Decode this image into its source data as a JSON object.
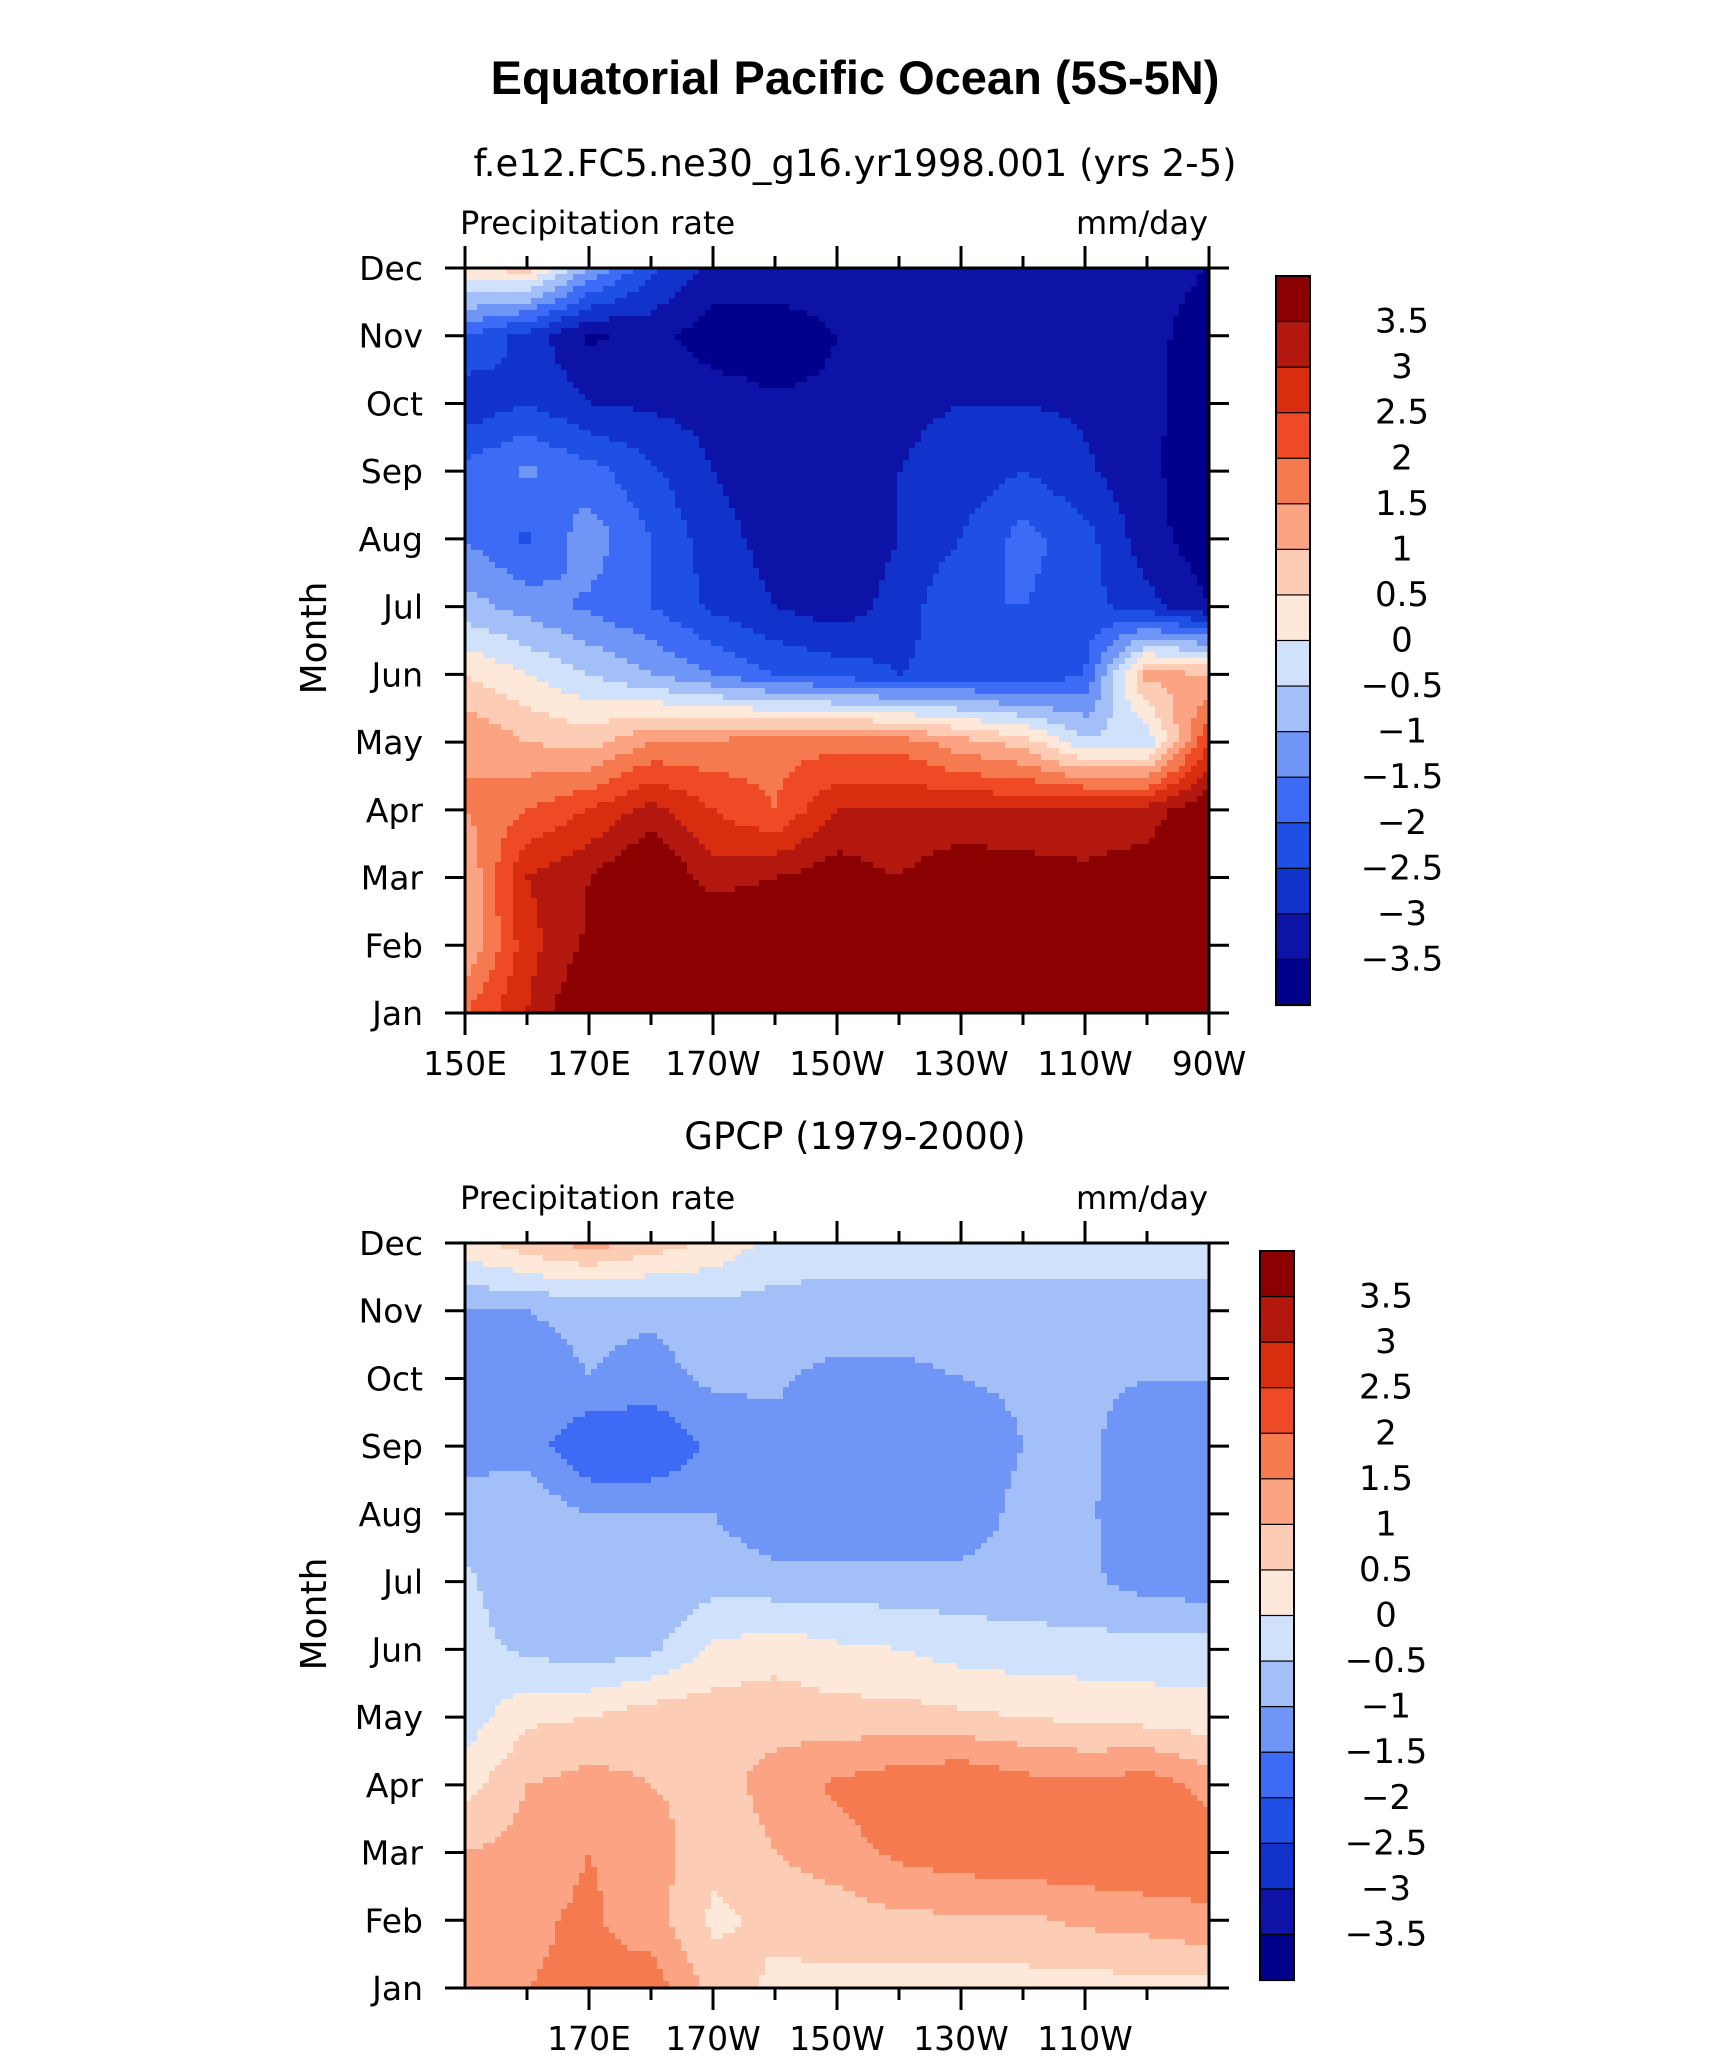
{
  "figure": {
    "title": "Equatorial Pacific Ocean (5S-5N)"
  },
  "chart_data": [
    {
      "type": "heatmap",
      "title": "f.e12.FC5.ne30_g16.yr1998.001 (yrs 2-5)",
      "left_label": "Precipitation rate",
      "right_label": "mm/day",
      "ylabel": "Month",
      "y": [
        "Jan",
        "Feb",
        "Mar",
        "Apr",
        "May",
        "Jun",
        "Jul",
        "Aug",
        "Sep",
        "Oct",
        "Nov",
        "Dec"
      ],
      "x": [
        150,
        160,
        170,
        180,
        190,
        200,
        210,
        220,
        230,
        240,
        250,
        260,
        270
      ],
      "xtick_labels": [
        "150E",
        "170E",
        "170W",
        "150W",
        "130W",
        "110W",
        "90W"
      ],
      "xtick_values": [
        150,
        170,
        190,
        210,
        230,
        250,
        270
      ],
      "colorbar": {
        "levels": [
          -3.5,
          -3,
          -2.5,
          -2,
          -1.5,
          -1,
          -0.5,
          0,
          0.5,
          1,
          1.5,
          2,
          2.5,
          3,
          3.5
        ],
        "labels": [
          "3.5",
          "3",
          "2.5",
          "2",
          "1.5",
          "1",
          "0.5",
          "0",
          "−0.5",
          "−1",
          "−1.5",
          "−2",
          "−2.5",
          "−3",
          "−3.5"
        ]
      },
      "z": [
        [
          2.0,
          3.0,
          4.2,
          4.5,
          4.5,
          4.5,
          4.5,
          4.5,
          4.5,
          4.5,
          4.5,
          4.5,
          4.5
        ],
        [
          1.0,
          2.8,
          3.6,
          4.5,
          4.5,
          4.5,
          4.5,
          4.5,
          4.5,
          4.5,
          4.5,
          4.5,
          4.5
        ],
        [
          1.0,
          3.0,
          3.5,
          4.2,
          3.2,
          3.5,
          3.8,
          3.5,
          4.0,
          3.8,
          3.6,
          3.8,
          4.5
        ],
        [
          1.5,
          2.0,
          2.5,
          3.2,
          2.5,
          2.0,
          3.0,
          3.0,
          3.0,
          3.0,
          3.2,
          3.2,
          4.0
        ],
        [
          1.5,
          1.0,
          0.8,
          1.5,
          1.6,
          1.8,
          1.8,
          1.8,
          1.2,
          0.8,
          -0.4,
          -0.4,
          2.5
        ],
        [
          0.5,
          0.0,
          -0.5,
          -1.0,
          -1.5,
          -2.0,
          -2.2,
          -2.5,
          -2.3,
          -2.5,
          -2.0,
          1.2,
          1.0
        ],
        [
          -0.8,
          -1.2,
          -1.6,
          -2.0,
          -2.6,
          -3.0,
          -3.3,
          -2.8,
          -2.0,
          -2.0,
          -2.3,
          -2.8,
          -3.5
        ],
        [
          -1.5,
          -2.1,
          -1.2,
          -2.0,
          -2.8,
          -3.2,
          -3.3,
          -3.0,
          -2.5,
          -1.8,
          -2.3,
          -3.3,
          -3.8
        ],
        [
          -1.8,
          -1.4,
          -1.8,
          -2.4,
          -3.0,
          -3.3,
          -3.4,
          -3.0,
          -2.8,
          -2.5,
          -2.9,
          -3.4,
          -3.8
        ],
        [
          -2.9,
          -2.5,
          -3.0,
          -3.1,
          -3.2,
          -3.4,
          -3.4,
          -3.1,
          -3.0,
          -3.0,
          -3.1,
          -3.3,
          -4.0
        ],
        [
          -2.0,
          -2.7,
          -3.6,
          -3.3,
          -3.8,
          -3.9,
          -3.5,
          -3.3,
          -3.1,
          -3.1,
          -3.0,
          -3.2,
          -4.0
        ],
        [
          0.5,
          0.7,
          -1.0,
          -2.4,
          -3.1,
          -3.1,
          -3.1,
          -3.0,
          -3.1,
          -3.0,
          -3.0,
          -3.1,
          -3.5
        ]
      ]
    },
    {
      "type": "heatmap",
      "title": "GPCP (1979-2000)",
      "left_label": "Precipitation rate",
      "right_label": "mm/day",
      "ylabel": "Month",
      "y": [
        "Jan",
        "Feb",
        "Mar",
        "Apr",
        "May",
        "Jun",
        "Jul",
        "Aug",
        "Sep",
        "Oct",
        "Nov",
        "Dec"
      ],
      "x": [
        150,
        160,
        170,
        180,
        190,
        200,
        210,
        220,
        230,
        240,
        250,
        260,
        270
      ],
      "xtick_labels": [
        "170E",
        "170W",
        "150W",
        "130W",
        "110W"
      ],
      "xtick_values": [
        170,
        190,
        210,
        230,
        250
      ],
      "colorbar": {
        "levels": [
          -3.5,
          -3,
          -2.5,
          -2,
          -1.5,
          -1,
          -0.5,
          0,
          0.5,
          1,
          1.5,
          2,
          2.5,
          3,
          3.5
        ],
        "labels": [
          "3.5",
          "3",
          "2.5",
          "2",
          "1.5",
          "1",
          "0.5",
          "0",
          "−0.5",
          "−1",
          "−1.5",
          "−2",
          "−2.5",
          "−3",
          "−3.5"
        ]
      },
      "z": [
        [
          1.2,
          1.5,
          1.6,
          1.8,
          0.8,
          0.4,
          0.4,
          0.3,
          0.3,
          0.3,
          0.3,
          0.3,
          0.3
        ],
        [
          1.0,
          1.4,
          1.6,
          1.2,
          0.4,
          0.6,
          0.7,
          0.9,
          0.9,
          0.9,
          1.1,
          1.2,
          1.4
        ],
        [
          1.0,
          1.2,
          1.5,
          1.3,
          0.6,
          1.0,
          1.3,
          1.6,
          1.8,
          1.9,
          1.9,
          2.0,
          1.8
        ],
        [
          0.3,
          1.0,
          1.2,
          1.0,
          0.8,
          1.2,
          1.6,
          1.8,
          2.0,
          1.7,
          1.6,
          1.8,
          1.3
        ],
        [
          -0.3,
          0.4,
          0.5,
          0.8,
          0.8,
          0.8,
          0.7,
          0.7,
          0.6,
          0.5,
          0.4,
          0.3,
          0.2
        ],
        [
          -0.3,
          -0.6,
          -0.8,
          -0.6,
          0.1,
          0.3,
          0.1,
          0.0,
          -0.2,
          -0.3,
          -0.3,
          -0.3,
          -0.3
        ],
        [
          -0.4,
          -0.9,
          -0.9,
          -1.0,
          -0.7,
          -0.8,
          -0.8,
          -0.8,
          -0.8,
          -0.8,
          -0.9,
          -1.2,
          -1.3
        ],
        [
          -0.8,
          -0.6,
          -1.0,
          -1.0,
          -1.0,
          -1.4,
          -1.4,
          -1.4,
          -1.4,
          -0.8,
          -0.9,
          -1.4,
          -1.4
        ],
        [
          -1.2,
          -1.2,
          -2.0,
          -2.0,
          -1.4,
          -1.2,
          -1.4,
          -1.3,
          -1.4,
          -1.0,
          -0.9,
          -1.3,
          -1.3
        ],
        [
          -1.5,
          -1.2,
          -1.0,
          -1.2,
          -0.9,
          -0.9,
          -1.2,
          -1.2,
          -1.0,
          -0.9,
          -0.9,
          -1.0,
          -1.0
        ],
        [
          -1.0,
          -1.0,
          -0.9,
          -0.9,
          -0.7,
          -0.7,
          -0.6,
          -0.6,
          -0.6,
          -0.6,
          -0.6,
          -0.6,
          -0.6
        ],
        [
          0.3,
          0.8,
          1.2,
          0.8,
          0.4,
          -0.2,
          -0.4,
          -0.4,
          -0.4,
          -0.4,
          -0.4,
          -0.4,
          -0.4
        ]
      ]
    }
  ],
  "colors": {
    "bins": [
      "#00008b",
      "#0c13a6",
      "#1133cc",
      "#1e50e6",
      "#3d6bf5",
      "#6f95f7",
      "#a3bff8",
      "#cfe1fb",
      "#fde8d9",
      "#fdccb5",
      "#fca383",
      "#f67a4f",
      "#ee4a25",
      "#d82d0e",
      "#b2180e",
      "#8b0000"
    ],
    "frame": "#000000"
  }
}
